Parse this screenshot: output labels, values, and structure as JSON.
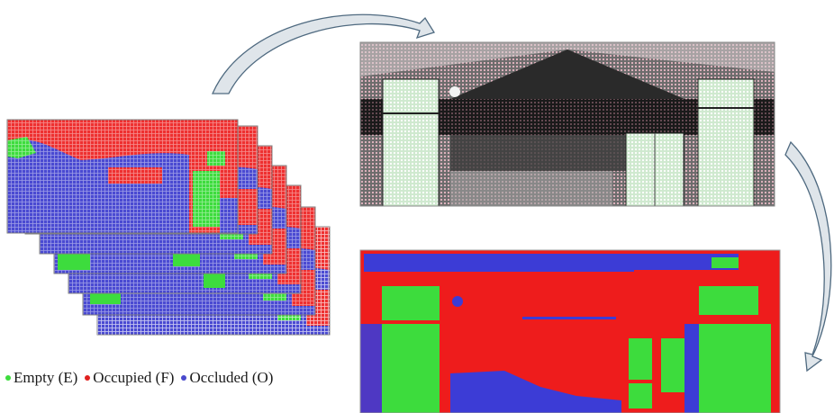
{
  "legend": {
    "items": [
      {
        "label": "Empty (E)",
        "color": "#3ddc3d"
      },
      {
        "label": "Occupied (F)",
        "color": "#e0201e"
      },
      {
        "label": "Occluded (O)",
        "color": "#4a4acd"
      }
    ]
  },
  "colors": {
    "empty": "#3ddc3d",
    "occupied": "#ee2020",
    "occluded": "#3c3cd6",
    "arrow_fill": "#dfe5ea",
    "arrow_stroke": "#4f6a80"
  },
  "icons": [
    "curved-arrow-icon"
  ]
}
